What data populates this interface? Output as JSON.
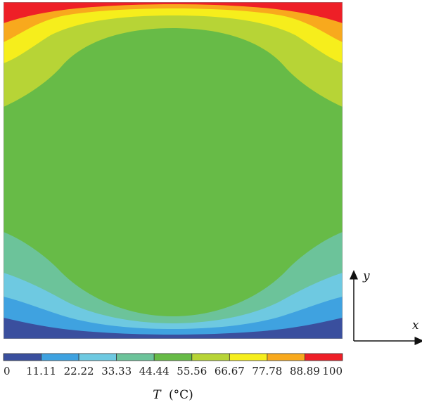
{
  "chart_data": {
    "type": "heatmap",
    "title": "",
    "colorbar": {
      "label_var": "T",
      "label_unit": "(°C)",
      "ticks": [
        "0",
        "11.11",
        "22.22",
        "33.33",
        "44.44",
        "55.56",
        "66.67",
        "77.78",
        "88.89",
        "100"
      ],
      "range": [
        0,
        100
      ],
      "levels": [
        {
          "from": 0,
          "to": 11.11,
          "color": "#3a4f9e"
        },
        {
          "from": 11.11,
          "to": 22.22,
          "color": "#3fa2e0"
        },
        {
          "from": 22.22,
          "to": 33.33,
          "color": "#6ec9e1"
        },
        {
          "from": 33.33,
          "to": 44.44,
          "color": "#6cc39a"
        },
        {
          "from": 44.44,
          "to": 55.56,
          "color": "#67bb47"
        },
        {
          "from": 55.56,
          "to": 66.67,
          "color": "#b7d436"
        },
        {
          "from": 66.67,
          "to": 77.78,
          "color": "#f6ee1c"
        },
        {
          "from": 77.78,
          "to": 88.89,
          "color": "#f8a91d"
        },
        {
          "from": 88.89,
          "to": 100,
          "color": "#ee1f27"
        }
      ]
    },
    "boundary_conditions": {
      "top_wall_T": 100,
      "bottom_wall_T": 0
    },
    "axes": {
      "x_label": "x",
      "y_label": "y"
    }
  }
}
